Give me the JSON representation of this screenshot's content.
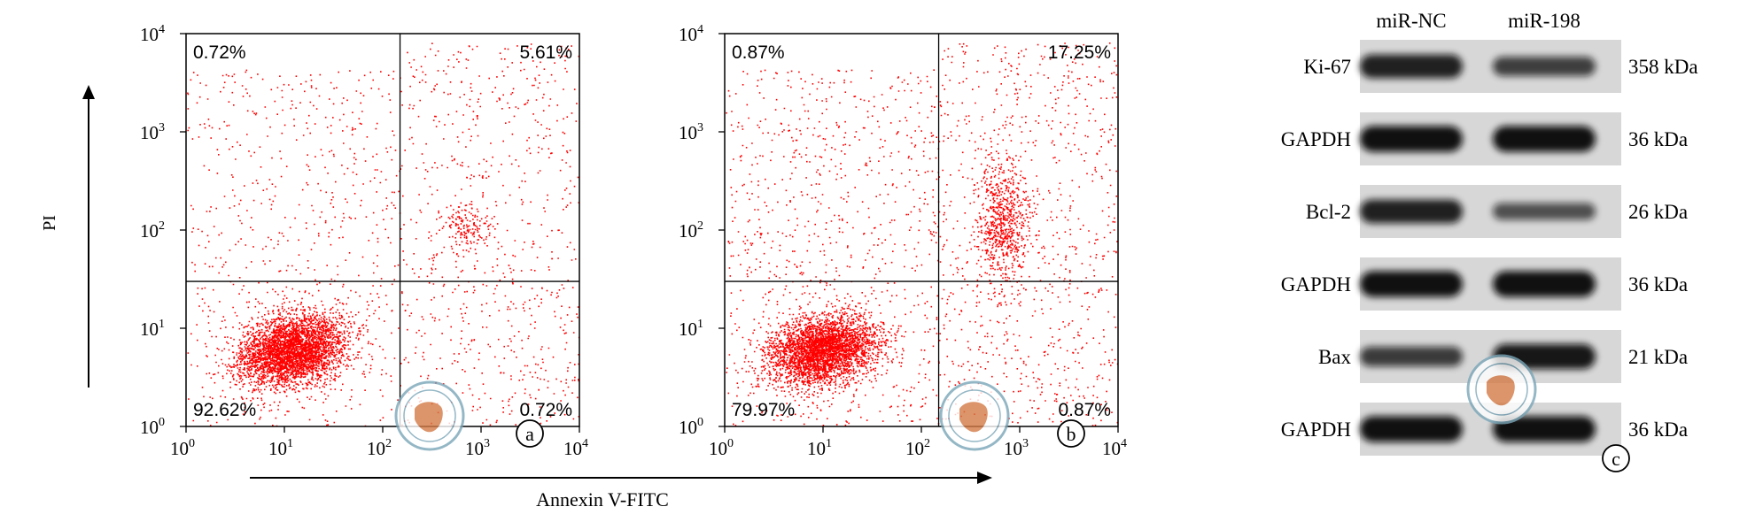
{
  "figure": {
    "axis_x_label": "Annexin V-FITC",
    "axis_y_label": "PI"
  },
  "chart_data": [
    {
      "type": "scatter",
      "panel": "a",
      "xlabel": "Annexin V-FITC",
      "ylabel": "PI",
      "xscale": "log",
      "yscale": "log",
      "xlim": [
        1,
        10000
      ],
      "ylim": [
        1,
        10000
      ],
      "ticks": [
        "10^0",
        "10^1",
        "10^2",
        "10^3",
        "10^4"
      ],
      "gate_x": 150,
      "gate_y": 30,
      "quadrants": {
        "upper_left": "0.72%",
        "upper_right": "5.61%",
        "lower_left": "92.62%",
        "lower_right": "0.72%"
      },
      "clusters": [
        {
          "x_center": 12,
          "y_center": 6,
          "count": 3600
        },
        {
          "x_center": 700,
          "y_center": 110,
          "count": 160
        }
      ]
    },
    {
      "type": "scatter",
      "panel": "b",
      "xlabel": "Annexin V-FITC",
      "ylabel": "PI",
      "xscale": "log",
      "yscale": "log",
      "xlim": [
        1,
        10000
      ],
      "ylim": [
        1,
        10000
      ],
      "ticks": [
        "10^0",
        "10^1",
        "10^2",
        "10^3",
        "10^4"
      ],
      "gate_x": 150,
      "gate_y": 30,
      "quadrants": {
        "upper_left": "0.87%",
        "upper_right": "17.25%",
        "lower_left": "79.97%",
        "lower_right": "0.87%"
      },
      "clusters": [
        {
          "x_center": 10,
          "y_center": 6,
          "count": 3400
        },
        {
          "x_center": 650,
          "y_center": 120,
          "count": 700
        }
      ]
    }
  ],
  "western_blot": {
    "panel": "c",
    "lanes": [
      "miR-NC",
      "miR-198"
    ],
    "rows": [
      {
        "protein": "Ki-67",
        "size": "358 kDa",
        "intensity": [
          0.85,
          0.62
        ]
      },
      {
        "protein": "GAPDH",
        "size": "36 kDa",
        "intensity": [
          0.97,
          0.97
        ]
      },
      {
        "protein": "Bcl-2",
        "size": "26 kDa",
        "intensity": [
          0.85,
          0.5
        ]
      },
      {
        "protein": "GAPDH",
        "size": "36 kDa",
        "intensity": [
          0.97,
          0.97
        ]
      },
      {
        "protein": "Bax",
        "size": "21 kDa",
        "intensity": [
          0.65,
          0.92
        ]
      },
      {
        "protein": "GAPDH",
        "size": "36 kDa",
        "intensity": [
          0.97,
          0.97
        ]
      }
    ]
  },
  "colors": {
    "points": "#ff0000",
    "axis": "#000000",
    "blot_bg": "#d7d7d7",
    "band": "#0f0f0f",
    "watermark": "#7aa6b8"
  }
}
